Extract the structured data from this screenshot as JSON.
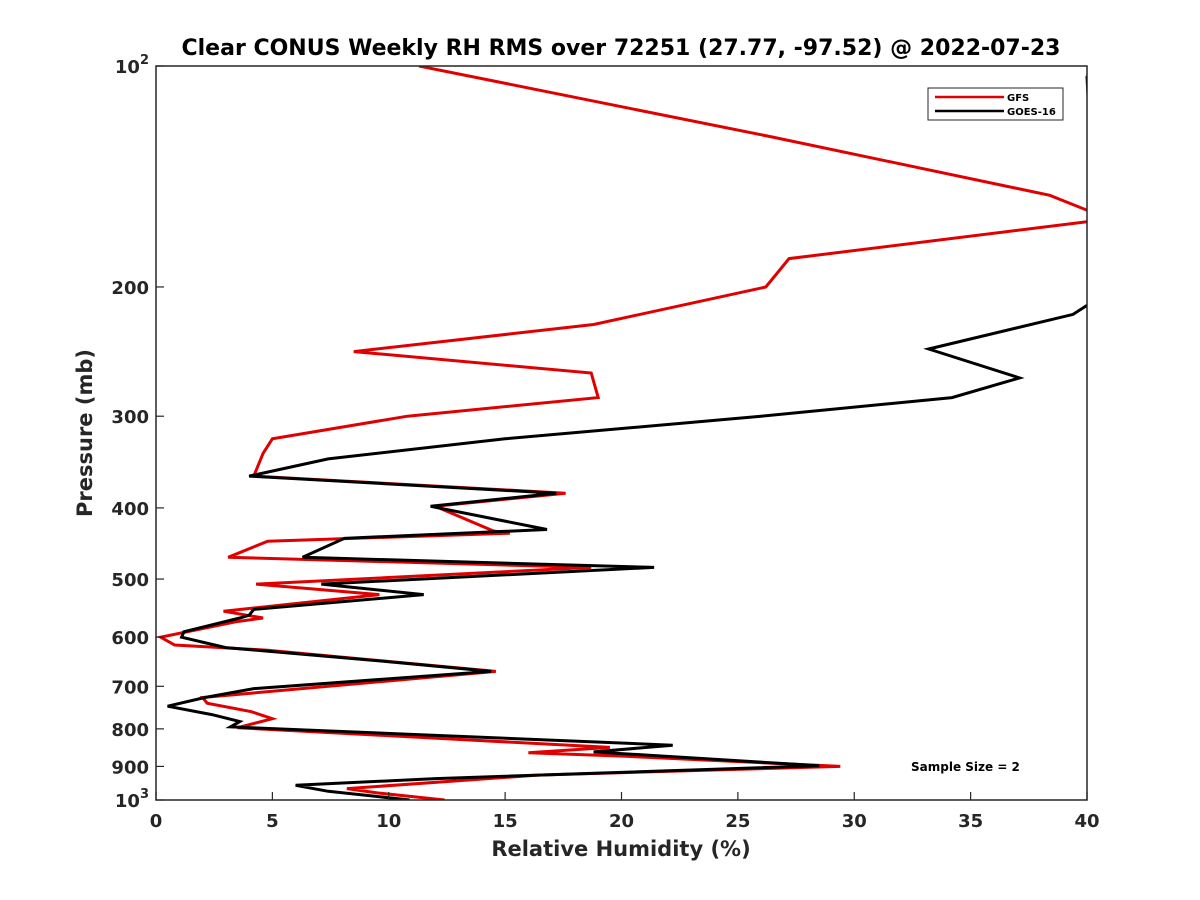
{
  "chart_data": {
    "type": "line",
    "title": "Clear CONUS Weekly RH RMS over 72251 (27.77, -97.52) @ 2022-07-23",
    "xlabel": "Relative Humidity (%)",
    "ylabel": "Pressure (mb)",
    "xlim": [
      0,
      40
    ],
    "ylim": [
      100,
      1000
    ],
    "yscale": "log",
    "y_reversed": true,
    "x_ticks": [
      "0",
      "5",
      "10",
      "15",
      "20",
      "25",
      "30",
      "35",
      "40"
    ],
    "y_ticks": [
      {
        "value": 100,
        "base": "10",
        "exp": "2"
      },
      {
        "value": 200,
        "label": "200"
      },
      {
        "value": 300,
        "label": "300"
      },
      {
        "value": 400,
        "label": "400"
      },
      {
        "value": 500,
        "label": "500"
      },
      {
        "value": 600,
        "label": "600"
      },
      {
        "value": 700,
        "label": "700"
      },
      {
        "value": 800,
        "label": "800"
      },
      {
        "value": 900,
        "label": "900"
      },
      {
        "value": 1000,
        "base": "10",
        "exp": "3"
      }
    ],
    "legend_position": "top-right",
    "grid": false,
    "annotation": "Sample Size = 2",
    "series": [
      {
        "name": "GFS",
        "color": "#e00000",
        "points": [
          [
            11.3,
            100
          ],
          [
            26.5,
            125
          ],
          [
            38.4,
            150
          ],
          [
            40.6,
            160
          ],
          [
            40,
            163
          ],
          [
            27.2,
            183
          ],
          [
            26.2,
            200
          ],
          [
            18.8,
            225
          ],
          [
            8.5,
            245
          ],
          [
            18.7,
            262
          ],
          [
            19.0,
            283
          ],
          [
            10.8,
            300
          ],
          [
            5.0,
            322
          ],
          [
            4.6,
            337
          ],
          [
            4.2,
            362
          ],
          [
            17.6,
            382
          ],
          [
            12.0,
            398
          ],
          [
            14.5,
            430
          ],
          [
            15.2,
            433
          ],
          [
            4.8,
            444
          ],
          [
            3.1,
            467
          ],
          [
            18.7,
            482
          ],
          [
            4.3,
            508
          ],
          [
            9.6,
            525
          ],
          [
            2.9,
            553
          ],
          [
            4.6,
            565
          ],
          [
            3.4,
            572
          ],
          [
            0.2,
            600
          ],
          [
            0.8,
            615
          ],
          [
            4.8,
            625
          ],
          [
            14.6,
            668
          ],
          [
            2.0,
            725
          ],
          [
            2.2,
            738
          ],
          [
            4.1,
            758
          ],
          [
            5.0,
            775
          ],
          [
            3.5,
            797
          ],
          [
            19.5,
            848
          ],
          [
            16.0,
            862
          ],
          [
            20.2,
            872
          ],
          [
            29.4,
            900
          ],
          [
            16.4,
            925
          ],
          [
            8.2,
            965
          ],
          [
            9.5,
            978
          ],
          [
            12.4,
            1000
          ]
        ]
      },
      {
        "name": "GOES-16",
        "color": "#000000",
        "points": [
          [
            40.4,
            99
          ],
          [
            40,
            103.5
          ],
          [
            40.5,
            207
          ],
          [
            39.4,
            218
          ],
          [
            33.2,
            243
          ],
          [
            37.1,
            266
          ],
          [
            34.2,
            283
          ],
          [
            26.0,
            300
          ],
          [
            15.0,
            322
          ],
          [
            7.4,
            343
          ],
          [
            4.0,
            362
          ],
          [
            17.2,
            382
          ],
          [
            11.8,
            398
          ],
          [
            16.8,
            428
          ],
          [
            8.1,
            440
          ],
          [
            6.3,
            467
          ],
          [
            21.4,
            482
          ],
          [
            7.1,
            508
          ],
          [
            11.5,
            525
          ],
          [
            4.2,
            550
          ],
          [
            4.0,
            560
          ],
          [
            3.6,
            565
          ],
          [
            1.2,
            590
          ],
          [
            1.1,
            600
          ],
          [
            3.0,
            620
          ],
          [
            10.0,
            648
          ],
          [
            14.4,
            668
          ],
          [
            4.2,
            705
          ],
          [
            2.1,
            725
          ],
          [
            0.5,
            745
          ],
          [
            2.4,
            765
          ],
          [
            3.6,
            782
          ],
          [
            3.2,
            795
          ],
          [
            22.2,
            842
          ],
          [
            18.8,
            860
          ],
          [
            28.5,
            898
          ],
          [
            12.0,
            935
          ],
          [
            6.0,
            955
          ],
          [
            7.4,
            973
          ],
          [
            10.9,
            1000
          ]
        ]
      }
    ]
  }
}
